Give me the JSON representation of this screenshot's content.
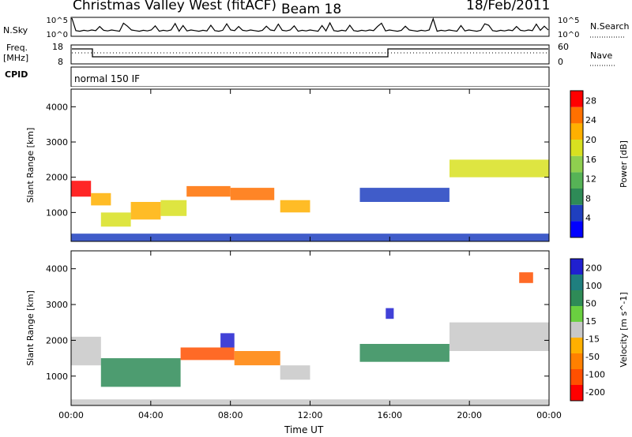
{
  "header": {
    "title": "Christmas Valley West (fitACF)",
    "beam": "Beam 18",
    "date": "18/Feb/2011"
  },
  "side_labels": {
    "nsky": "N.Sky",
    "freq": "Freq.",
    "freq_unit": "[MHz]",
    "cpid": "CPID",
    "nsearch": "N.Search",
    "nave": "Nave",
    "cpid_value": "normal 150 IF"
  },
  "panel_ticks": {
    "noise_left": [
      "10^5",
      "10^0"
    ],
    "noise_right": [
      "10^5",
      "10^0"
    ],
    "freq_left": [
      "18",
      "8"
    ],
    "freq_right": [
      "60",
      "0"
    ]
  },
  "colors": {
    "power": [
      "#0000ff",
      "#1f3fbf",
      "#2e8b57",
      "#56b356",
      "#8fcf4f",
      "#d8e020",
      "#ffb000",
      "#ff7000",
      "#ff0000"
    ],
    "velocity": [
      "#2020d0",
      "#1f7f7f",
      "#2e8b57",
      "#6ad040",
      "#c8c8c8",
      "#ffb000",
      "#ff8000",
      "#ff5000",
      "#ff0000"
    ]
  },
  "chart_data": [
    {
      "type": "heatmap",
      "title": "",
      "xlabel": "Time UT",
      "ylabel": "Slant Range [km]",
      "colorbar_label": "Power [dB]",
      "x_ticks": [
        "00:00",
        "04:00",
        "08:00",
        "12:00",
        "16:00",
        "20:00",
        "00:00"
      ],
      "y_ticks": [
        1000,
        2000,
        3000,
        4000
      ],
      "ylim": [
        180,
        4500
      ],
      "xlim_hours": [
        0,
        24
      ],
      "colorbar_ticks": [
        4,
        8,
        12,
        16,
        20,
        24,
        28
      ],
      "colorbar_range": [
        0,
        30
      ],
      "regions": [
        {
          "t0": 0.0,
          "t1": 1.0,
          "r0": 1450,
          "r1": 1900,
          "v": 27
        },
        {
          "t0": 1.0,
          "t1": 2.0,
          "r0": 1200,
          "r1": 1550,
          "v": 22
        },
        {
          "t0": 1.5,
          "t1": 3.0,
          "r0": 600,
          "r1": 1000,
          "v": 18
        },
        {
          "t0": 3.0,
          "t1": 4.5,
          "r0": 800,
          "r1": 1300,
          "v": 22
        },
        {
          "t0": 4.5,
          "t1": 5.8,
          "r0": 900,
          "r1": 1350,
          "v": 18
        },
        {
          "t0": 5.8,
          "t1": 8.0,
          "r0": 1450,
          "r1": 1750,
          "v": 26
        },
        {
          "t0": 8.0,
          "t1": 10.2,
          "r0": 1350,
          "r1": 1700,
          "v": 24
        },
        {
          "t0": 10.5,
          "t1": 12.0,
          "r0": 1000,
          "r1": 1350,
          "v": 20
        },
        {
          "t0": 14.5,
          "t1": 19.0,
          "r0": 1300,
          "r1": 1700,
          "v": 6
        },
        {
          "t0": 19.0,
          "t1": 24.0,
          "r0": 2000,
          "r1": 2500,
          "v": 18
        },
        {
          "t0": 0.0,
          "t1": 24.0,
          "r0": 180,
          "r1": 400,
          "v": 6
        }
      ]
    },
    {
      "type": "heatmap",
      "title": "",
      "xlabel": "Time UT",
      "ylabel": "Slant Range [km]",
      "colorbar_label": "Velocity [m s^-1]",
      "x_ticks": [
        "00:00",
        "04:00",
        "08:00",
        "12:00",
        "16:00",
        "20:00",
        "00:00"
      ],
      "y_ticks": [
        1000,
        2000,
        3000,
        4000
      ],
      "ylim": [
        180,
        4500
      ],
      "xlim_hours": [
        0,
        24
      ],
      "colorbar_ticks": [
        200,
        100,
        50,
        15,
        -15,
        -50,
        -100,
        -200
      ],
      "regions": [
        {
          "t0": 0.0,
          "t1": 1.5,
          "r0": 1300,
          "r1": 2100,
          "v": 0
        },
        {
          "t0": 1.5,
          "t1": 5.5,
          "r0": 700,
          "r1": 1500,
          "v": 30
        },
        {
          "t0": 5.5,
          "t1": 8.2,
          "r0": 1450,
          "r1": 1800,
          "v": -200
        },
        {
          "t0": 7.5,
          "t1": 8.2,
          "r0": 1800,
          "r1": 2200,
          "v": 200
        },
        {
          "t0": 8.2,
          "t1": 10.5,
          "r0": 1300,
          "r1": 1700,
          "v": -100
        },
        {
          "t0": 10.5,
          "t1": 12.0,
          "r0": 900,
          "r1": 1300,
          "v": -30
        },
        {
          "t0": 14.5,
          "t1": 19.0,
          "r0": 1400,
          "r1": 1900,
          "v": 30
        },
        {
          "t0": 19.0,
          "t1": 24.0,
          "r0": 1700,
          "r1": 2500,
          "v": 0
        },
        {
          "t0": 0.0,
          "t1": 24.0,
          "r0": 180,
          "r1": 350,
          "v": -30
        },
        {
          "t0": 22.5,
          "t1": 23.2,
          "r0": 3600,
          "r1": 3900,
          "v": -200
        },
        {
          "t0": 15.8,
          "t1": 16.2,
          "r0": 2600,
          "r1": 2900,
          "v": 200
        }
      ]
    }
  ]
}
